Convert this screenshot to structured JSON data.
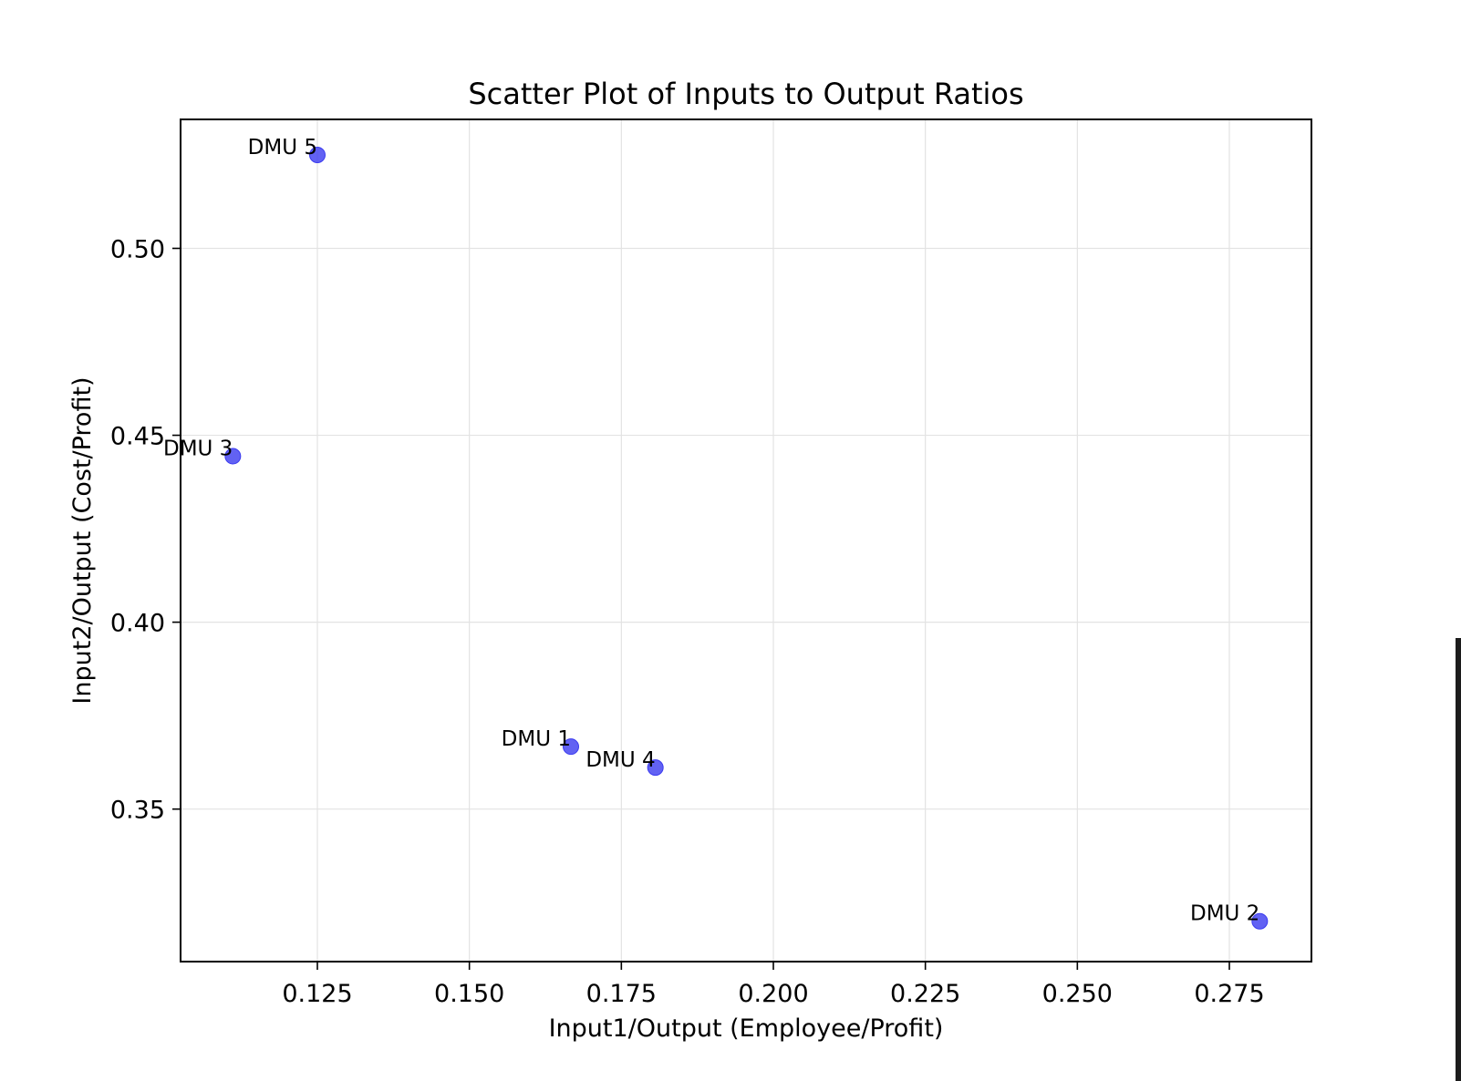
{
  "chart_data": {
    "type": "scatter",
    "title": "Scatter Plot of Inputs to Output Ratios",
    "xlabel": "Input1/Output (Employee/Profit)",
    "ylabel": "Input2/Output (Cost/Profit)",
    "xlim": [
      0.1025,
      0.2885
    ],
    "ylim": [
      0.3092,
      0.5345
    ],
    "xticks": [
      0.125,
      0.15,
      0.175,
      0.2,
      0.225,
      0.25,
      0.275
    ],
    "xtick_labels": [
      "0.125",
      "0.150",
      "0.175",
      "0.200",
      "0.225",
      "0.250",
      "0.275"
    ],
    "yticks": [
      0.35,
      0.4,
      0.45,
      0.5
    ],
    "ytick_labels": [
      "0.35",
      "0.40",
      "0.45",
      "0.50"
    ],
    "grid": true,
    "marker_color": "#3b3bf0",
    "points": [
      {
        "label": "DMU 1",
        "x": 0.1667,
        "y": 0.3667
      },
      {
        "label": "DMU 2",
        "x": 0.28,
        "y": 0.32
      },
      {
        "label": "DMU 3",
        "x": 0.1111,
        "y": 0.4444
      },
      {
        "label": "DMU 4",
        "x": 0.1806,
        "y": 0.3611
      },
      {
        "label": "DMU 5",
        "x": 0.125,
        "y": 0.525
      }
    ]
  }
}
